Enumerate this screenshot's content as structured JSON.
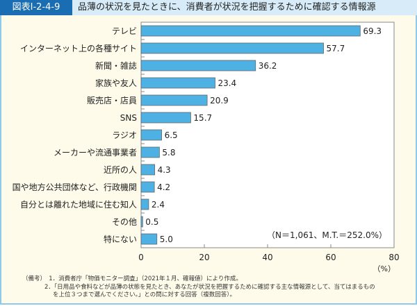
{
  "header": {
    "label": "図表Ⅰ-2-4-9",
    "title": "品薄の状況を見たときに、消費者が状況を把握するために確認する情報源"
  },
  "chart_data": {
    "type": "bar",
    "orientation": "horizontal",
    "categories": [
      "テレビ",
      "インターネット上の各種サイト",
      "新聞・雑誌",
      "家族や友人",
      "販売店・店員",
      "SNS",
      "ラジオ",
      "メーカーや流通事業者",
      "近所の人",
      "国や地方公共団体など、行政機関",
      "自分とは離れた地域に住む知人",
      "その他",
      "特にない"
    ],
    "values": [
      69.3,
      57.7,
      36.2,
      23.4,
      20.9,
      15.7,
      6.5,
      5.8,
      4.3,
      4.2,
      2.4,
      0.5,
      5.0
    ],
    "value_labels": [
      "69.3",
      "57.7",
      "36.2",
      "23.4",
      "20.9",
      "15.7",
      "6.5",
      "5.8",
      "4.3",
      "4.2",
      "2.4",
      "0.5",
      "5.0"
    ],
    "xlim": [
      0,
      80
    ],
    "xticks": [
      "0",
      "20",
      "40",
      "60",
      "80"
    ],
    "xunit": "（%）",
    "annotation": "（N＝1,061、M.T.＝252.0%）",
    "bar_color": "#4db1e4",
    "grid": false
  },
  "notes": [
    "（備考）　1．消費者庁「物価モニター調査」（2021年１月、確報値）により作成。",
    "2．「日用品や食料などが品薄の状態を見たとき、あなたが状況を把握するために確認する主な情報源として、当てはまるもの",
    "を上位３つまで選んでください。」との問に対する回答（複数回答）。"
  ]
}
